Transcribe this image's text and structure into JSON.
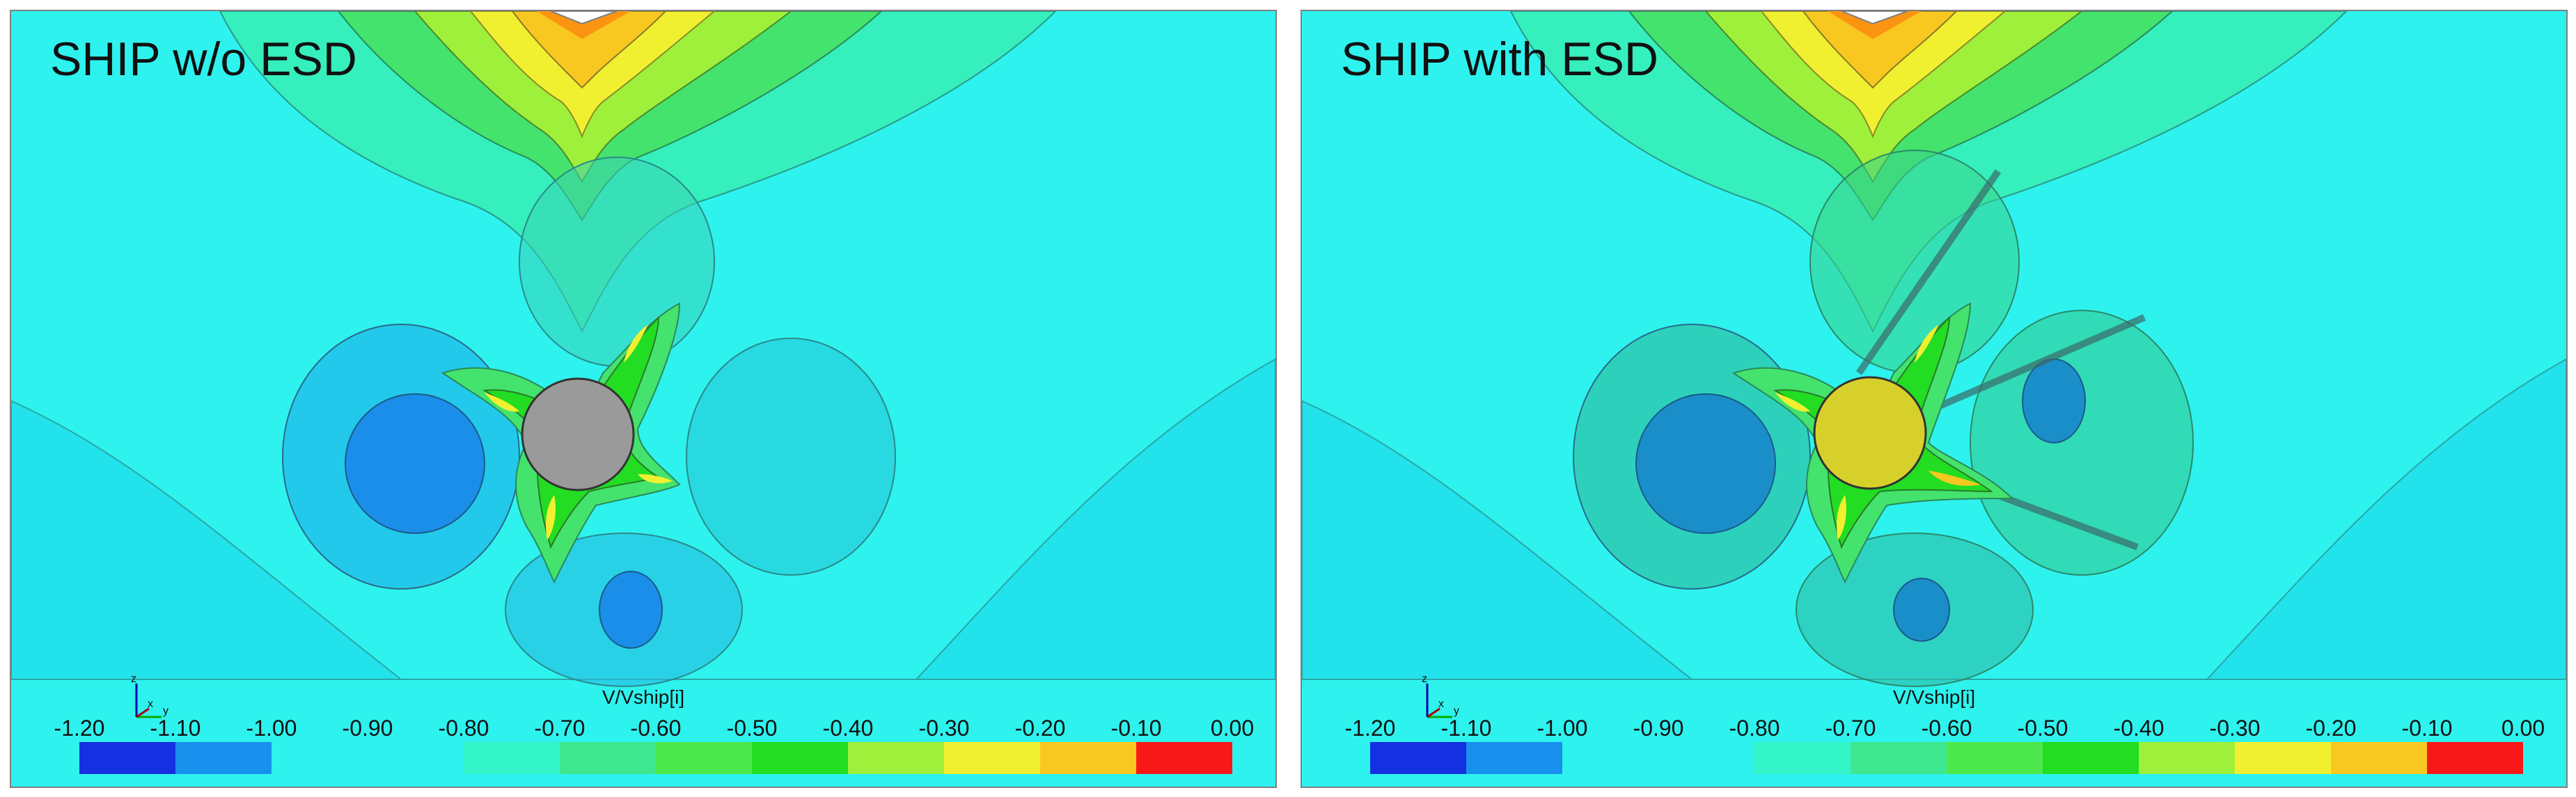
{
  "panels": [
    {
      "id": "left",
      "title": "SHIP w/o ESD",
      "hub_color": "#9a9a9a",
      "has_esd": false
    },
    {
      "id": "right",
      "title": "SHIP with ESD",
      "hub_color": "#d8d02a",
      "has_esd": true
    }
  ],
  "color_scale": {
    "label": "V/Vship[i]",
    "ticks": [
      "-1.20",
      "-1.10",
      "-1.00",
      "-0.90",
      "-0.80",
      "-0.70",
      "-0.60",
      "-0.50",
      "-0.40",
      "-0.30",
      "-0.20",
      "-0.10",
      "0.00"
    ],
    "colors": [
      "#1530e0",
      "#1890ee",
      "#2ef2ee",
      "#2ef2ee",
      "#33f5c8",
      "#3ee890",
      "#4ce84c",
      "#22dd22",
      "#9ef03a",
      "#f0f030",
      "#f8c820",
      "#fb9410",
      "#f81818"
    ]
  },
  "axis_triad": {
    "z": "z",
    "x": "x",
    "y": "y"
  },
  "colors": {
    "background_field": "#2ef2ee",
    "panel_border": "#7f7f7f"
  }
}
